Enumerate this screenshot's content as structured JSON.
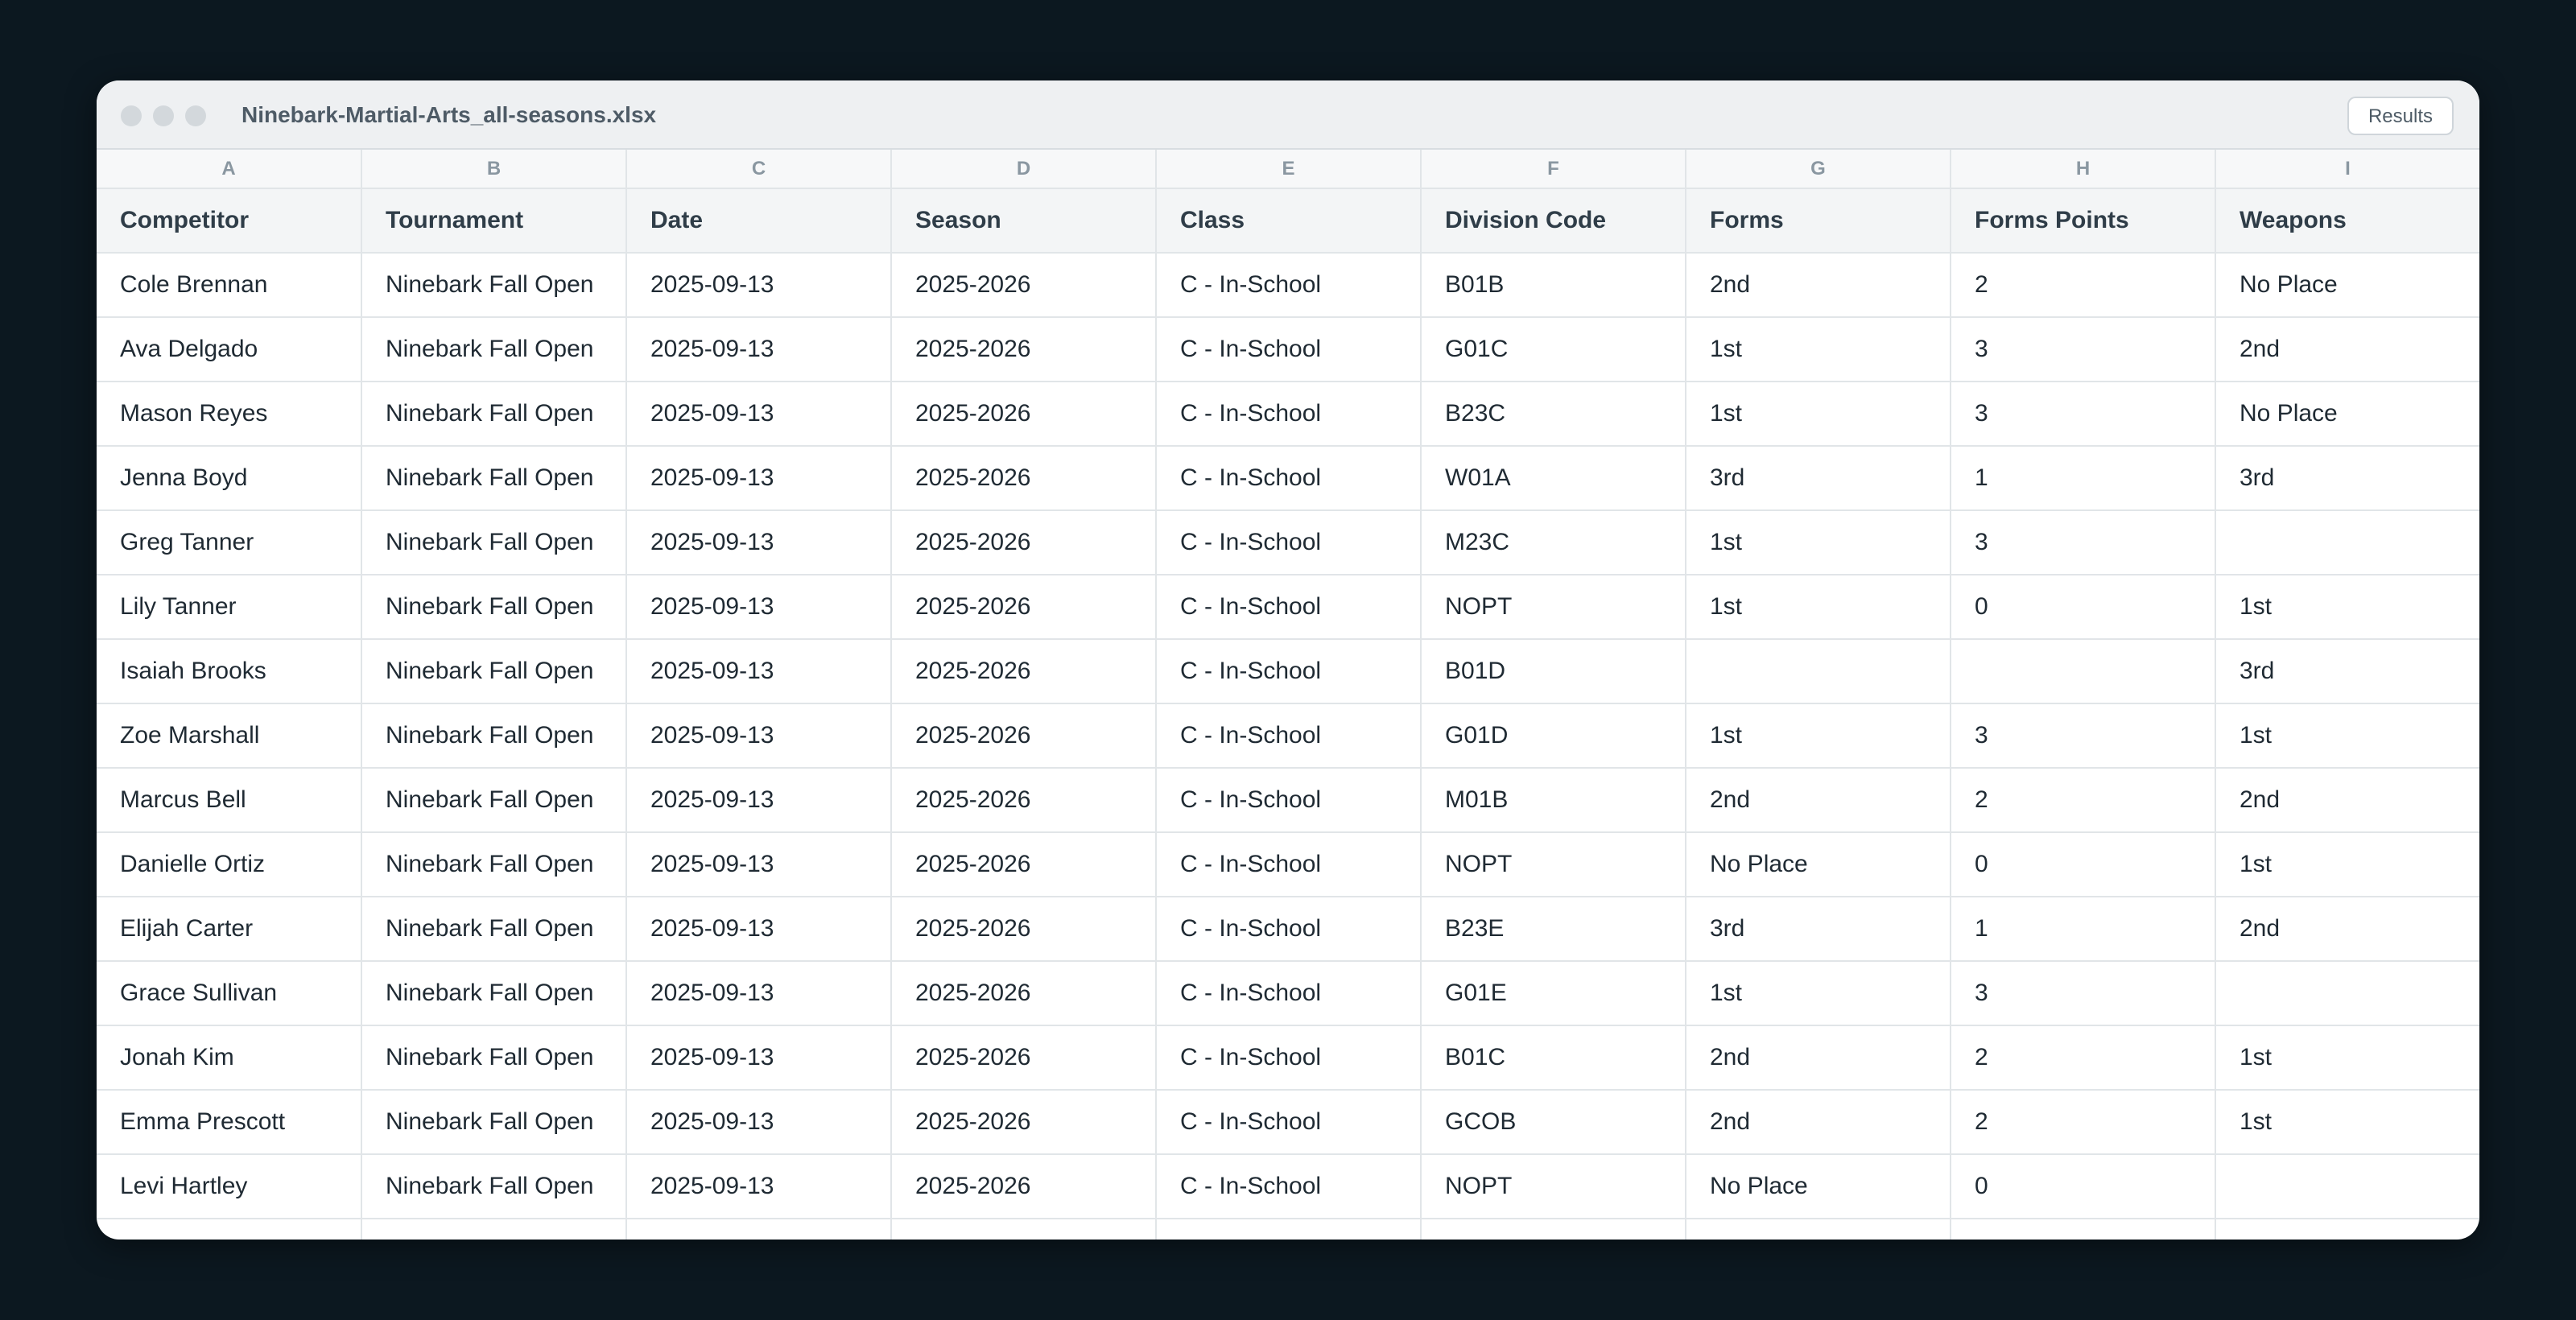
{
  "window": {
    "title": "Ninebark-Martial-Arts_all-seasons.xlsx",
    "results_button": "Results"
  },
  "sheet": {
    "column_letters": [
      "A",
      "B",
      "C",
      "D",
      "E",
      "F",
      "G",
      "H",
      "I"
    ],
    "headers": [
      "Competitor",
      "Tournament",
      "Date",
      "Season",
      "Class",
      "Division Code",
      "Forms",
      "Forms Points",
      "Weapons"
    ],
    "rows": [
      [
        "Cole Brennan",
        "Ninebark Fall Open",
        "2025-09-13",
        "2025-2026",
        "C - In-School",
        "B01B",
        "2nd",
        "2",
        "No Place"
      ],
      [
        "Ava Delgado",
        "Ninebark Fall Open",
        "2025-09-13",
        "2025-2026",
        "C - In-School",
        "G01C",
        "1st",
        "3",
        "2nd"
      ],
      [
        "Mason Reyes",
        "Ninebark Fall Open",
        "2025-09-13",
        "2025-2026",
        "C - In-School",
        "B23C",
        "1st",
        "3",
        "No Place"
      ],
      [
        "Jenna Boyd",
        "Ninebark Fall Open",
        "2025-09-13",
        "2025-2026",
        "C - In-School",
        "W01A",
        "3rd",
        "1",
        "3rd"
      ],
      [
        "Greg Tanner",
        "Ninebark Fall Open",
        "2025-09-13",
        "2025-2026",
        "C - In-School",
        "M23C",
        "1st",
        "3",
        ""
      ],
      [
        "Lily Tanner",
        "Ninebark Fall Open",
        "2025-09-13",
        "2025-2026",
        "C - In-School",
        "NOPT",
        "1st",
        "0",
        "1st"
      ],
      [
        "Isaiah Brooks",
        "Ninebark Fall Open",
        "2025-09-13",
        "2025-2026",
        "C - In-School",
        "B01D",
        "",
        "",
        "3rd"
      ],
      [
        "Zoe Marshall",
        "Ninebark Fall Open",
        "2025-09-13",
        "2025-2026",
        "C - In-School",
        "G01D",
        "1st",
        "3",
        "1st"
      ],
      [
        "Marcus Bell",
        "Ninebark Fall Open",
        "2025-09-13",
        "2025-2026",
        "C - In-School",
        "M01B",
        "2nd",
        "2",
        "2nd"
      ],
      [
        "Danielle Ortiz",
        "Ninebark Fall Open",
        "2025-09-13",
        "2025-2026",
        "C - In-School",
        "NOPT",
        "No Place",
        "0",
        "1st"
      ],
      [
        "Elijah Carter",
        "Ninebark Fall Open",
        "2025-09-13",
        "2025-2026",
        "C - In-School",
        "B23E",
        "3rd",
        "1",
        "2nd"
      ],
      [
        "Grace Sullivan",
        "Ninebark Fall Open",
        "2025-09-13",
        "2025-2026",
        "C - In-School",
        "G01E",
        "1st",
        "3",
        ""
      ],
      [
        "Jonah Kim",
        "Ninebark Fall Open",
        "2025-09-13",
        "2025-2026",
        "C - In-School",
        "B01C",
        "2nd",
        "2",
        "1st"
      ],
      [
        "Emma Prescott",
        "Ninebark Fall Open",
        "2025-09-13",
        "2025-2026",
        "C - In-School",
        "GCOB",
        "2nd",
        "2",
        "1st"
      ],
      [
        "Levi Hartley",
        "Ninebark Fall Open",
        "2025-09-13",
        "2025-2026",
        "C - In-School",
        "NOPT",
        "No Place",
        "0",
        ""
      ],
      [
        "",
        "",
        "",
        "",
        "",
        "",
        "",
        "",
        ""
      ]
    ]
  }
}
